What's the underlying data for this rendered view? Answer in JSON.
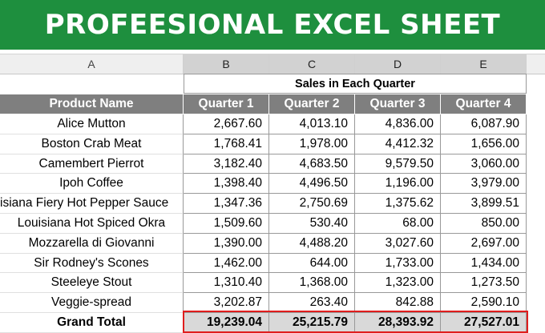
{
  "banner": {
    "title": "PROFEESIONAL EXCEL SHEET"
  },
  "columns": [
    "A",
    "B",
    "C",
    "D",
    "E"
  ],
  "sheet": {
    "title": "Sales in Each Quarter",
    "headers": [
      "Product Name",
      "Quarter 1",
      "Quarter 2",
      "Quarter 3",
      "Quarter 4"
    ],
    "rows": [
      [
        "Alice Mutton",
        "2,667.60",
        "4,013.10",
        "4,836.00",
        "6,087.90"
      ],
      [
        "Boston Crab Meat",
        "1,768.41",
        "1,978.00",
        "4,412.32",
        "1,656.00"
      ],
      [
        "Camembert Pierrot",
        "3,182.40",
        "4,683.50",
        "9,579.50",
        "3,060.00"
      ],
      [
        "Ipoh Coffee",
        "1,398.40",
        "4,496.50",
        "1,196.00",
        "3,979.00"
      ],
      [
        "isiana Fiery Hot Pepper Sauce",
        "1,347.36",
        "2,750.69",
        "1,375.62",
        "3,899.51"
      ],
      [
        "Louisiana Hot Spiced Okra",
        "1,509.60",
        "530.40",
        "68.00",
        "850.00"
      ],
      [
        "Mozzarella di Giovanni",
        "1,390.00",
        "4,488.20",
        "3,027.60",
        "2,697.00"
      ],
      [
        "Sir Rodney's Scones",
        "1,462.00",
        "644.00",
        "1,733.00",
        "1,434.00"
      ],
      [
        "Steeleye Stout",
        "1,310.40",
        "1,368.00",
        "1,323.00",
        "1,273.50"
      ],
      [
        "Veggie-spread",
        "3,202.87",
        "263.40",
        "842.88",
        "2,590.10"
      ]
    ],
    "total": [
      "Grand Total",
      "19,239.04",
      "25,215.79",
      "28,393.92",
      "27,527.01"
    ]
  }
}
